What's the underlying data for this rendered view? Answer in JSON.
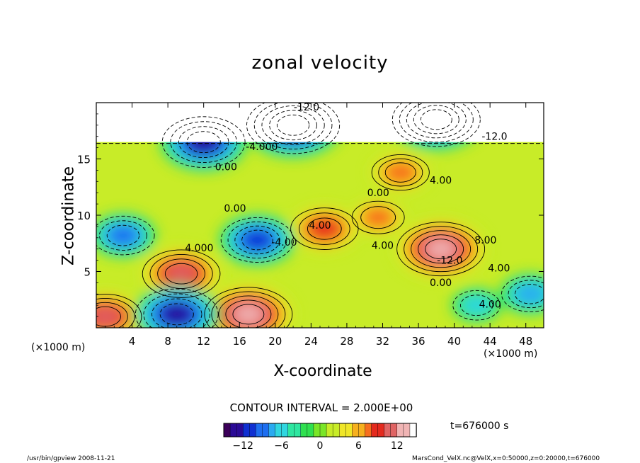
{
  "title": "zonal velocity",
  "xlabel": "X-coordinate",
  "ylabel": "Z-coordinate",
  "x_unit_label": "(×1000 m)",
  "x_unit_label_right": "(×1000 m)",
  "contour_interval_text": "CONTOUR INTERVAL = 2.000E+00",
  "time_text": "t=676000 s",
  "footer_left": "/usr/bin/gpview  2008-11-21",
  "footer_right": "MarsCond_VelX.nc@VelX,x=0:50000,z=0:20000,t=676000",
  "colors": {
    "scale": [
      "#3c005a",
      "#2a0a96",
      "#1030d2",
      "#1e6ef0",
      "#2aaaf0",
      "#30d6e0",
      "#2ee6a0",
      "#30e050",
      "#7ae628",
      "#c8ec28",
      "#f0e628",
      "#f6b01e",
      "#f66e1e",
      "#e42a1e",
      "#e06464",
      "#f0b4b4",
      "#ffffff"
    ]
  },
  "chart_data": {
    "type": "heatmap",
    "title": "zonal velocity",
    "xlabel": "X-coordinate",
    "ylabel": "Z-coordinate",
    "xlim": [
      0,
      50
    ],
    "ylim": [
      0,
      20
    ],
    "x_ticks": [
      4,
      8,
      12,
      16,
      20,
      24,
      28,
      32,
      36,
      40,
      44,
      48
    ],
    "x_tick_labels": [
      "4",
      "8",
      "12",
      "16",
      "20",
      "24",
      "28",
      "32",
      "36",
      "40",
      "44",
      "48"
    ],
    "y_ticks": [
      5,
      10,
      15
    ],
    "y_tick_labels": [
      "5",
      "10",
      "15"
    ],
    "contour_interval": 2.0,
    "color_range": [
      -15,
      15
    ],
    "colorbar_ticks": [
      -12,
      -6,
      0,
      6,
      12
    ],
    "colorbar_tick_labels": [
      "−12",
      "−6",
      "0",
      "6",
      "12"
    ],
    "undefined_above_z": 16.5,
    "features": [
      {
        "x": 9.5,
        "z": 4.8,
        "value": 12
      },
      {
        "x": 38.5,
        "z": 7.0,
        "value": 14
      },
      {
        "x": 25.5,
        "z": 8.8,
        "value": 10
      },
      {
        "x": 17.0,
        "z": 1.2,
        "value": 14
      },
      {
        "x": 1.0,
        "z": 1.0,
        "value": 11
      },
      {
        "x": 31.5,
        "z": 9.8,
        "value": 7
      },
      {
        "x": 34.0,
        "z": 13.8,
        "value": 8
      },
      {
        "x": 48.5,
        "z": 3.0,
        "value": -8
      },
      {
        "x": 18.0,
        "z": 7.8,
        "value": -11
      },
      {
        "x": 3.0,
        "z": 8.2,
        "value": -9
      },
      {
        "x": 9.0,
        "z": 1.2,
        "value": -13
      },
      {
        "x": 42.5,
        "z": 2.0,
        "value": -6
      },
      {
        "x": 22.0,
        "z": 18.0,
        "value": -15
      },
      {
        "x": 38.0,
        "z": 18.5,
        "value": -14
      },
      {
        "x": 12.0,
        "z": 16.5,
        "value": -13
      }
    ],
    "contour_labels": [
      {
        "x": 23.5,
        "z": 19.3,
        "text": "-12.0"
      },
      {
        "x": 44.5,
        "z": 16.7,
        "text": "-12.0"
      },
      {
        "x": 18.5,
        "z": 15.8,
        "text": "-4.000"
      },
      {
        "x": 14.5,
        "z": 14.0,
        "text": "0.00"
      },
      {
        "x": 38.5,
        "z": 12.8,
        "text": "4.00"
      },
      {
        "x": 31.5,
        "z": 11.7,
        "text": "0.00"
      },
      {
        "x": 15.5,
        "z": 10.3,
        "text": "0.00"
      },
      {
        "x": 25.0,
        "z": 8.8,
        "text": "4.00"
      },
      {
        "x": 11.5,
        "z": 6.8,
        "text": "4.000"
      },
      {
        "x": 21.0,
        "z": 7.3,
        "text": "-4.00"
      },
      {
        "x": 32.0,
        "z": 7.0,
        "text": "4.00"
      },
      {
        "x": 43.5,
        "z": 7.5,
        "text": "8.00"
      },
      {
        "x": 39.5,
        "z": 5.7,
        "text": "-12.0"
      },
      {
        "x": 45.0,
        "z": 5.0,
        "text": "4.00"
      },
      {
        "x": 38.5,
        "z": 3.7,
        "text": "0.00"
      },
      {
        "x": 44.0,
        "z": 1.8,
        "text": "4.00"
      }
    ]
  }
}
